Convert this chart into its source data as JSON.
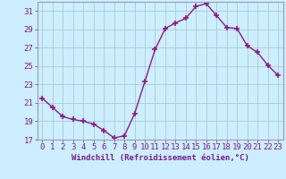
{
  "x": [
    0,
    1,
    2,
    3,
    4,
    5,
    6,
    7,
    8,
    9,
    10,
    11,
    12,
    13,
    14,
    15,
    16,
    17,
    18,
    19,
    20,
    21,
    22,
    23
  ],
  "y": [
    21.5,
    20.5,
    19.5,
    19.2,
    19.0,
    18.7,
    18.0,
    17.2,
    17.4,
    19.8,
    23.3,
    26.8,
    29.1,
    29.7,
    30.2,
    31.5,
    31.8,
    30.5,
    29.2,
    29.1,
    27.2,
    26.5,
    25.1,
    24.0
  ],
  "line_color": "#8b1a8b",
  "marker": "+",
  "marker_size": 4,
  "marker_lw": 1.2,
  "bg_color": "#cceeff",
  "grid_color": "#aacccc",
  "xlabel": "Windchill (Refroidissement éolien,°C)",
  "ylabel": "",
  "ylim": [
    17,
    32
  ],
  "xlim": [
    -0.5,
    23.5
  ],
  "yticks": [
    17,
    19,
    21,
    23,
    25,
    27,
    29,
    31
  ],
  "xticks": [
    0,
    1,
    2,
    3,
    4,
    5,
    6,
    7,
    8,
    9,
    10,
    11,
    12,
    13,
    14,
    15,
    16,
    17,
    18,
    19,
    20,
    21,
    22,
    23
  ],
  "tick_color": "#7b1a8b",
  "label_fontsize": 6.5,
  "tick_fontsize": 6.5,
  "spine_color": "#9999bb",
  "line_width": 1.0
}
